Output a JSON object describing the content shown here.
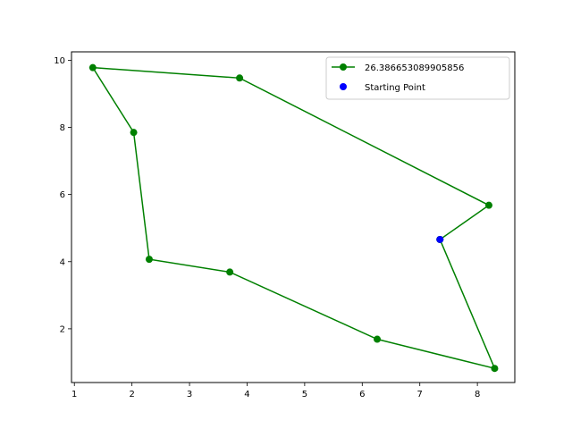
{
  "chart_data": {
    "type": "line",
    "title": "",
    "xlabel": "",
    "ylabel": "",
    "xlim": [
      0.95,
      8.65
    ],
    "ylim": [
      0.4,
      10.25
    ],
    "xticks": [
      1,
      2,
      3,
      4,
      5,
      6,
      7,
      8
    ],
    "yticks": [
      2,
      4,
      6,
      8,
      10
    ],
    "grid": false,
    "legend_position": "top-right",
    "series": [
      {
        "name": "26.386653089905856",
        "color": "#008000",
        "marker": "circle",
        "x": [
          7.35,
          8.2,
          3.87,
          1.32,
          2.03,
          2.3,
          3.7,
          6.26,
          8.3,
          7.35
        ],
        "y": [
          4.66,
          5.68,
          9.47,
          9.78,
          7.85,
          4.07,
          3.69,
          1.69,
          0.82,
          4.66
        ]
      },
      {
        "name": "Starting Point",
        "color": "#0000ff",
        "marker": "circle",
        "x": [
          7.35
        ],
        "y": [
          4.66
        ]
      }
    ]
  }
}
